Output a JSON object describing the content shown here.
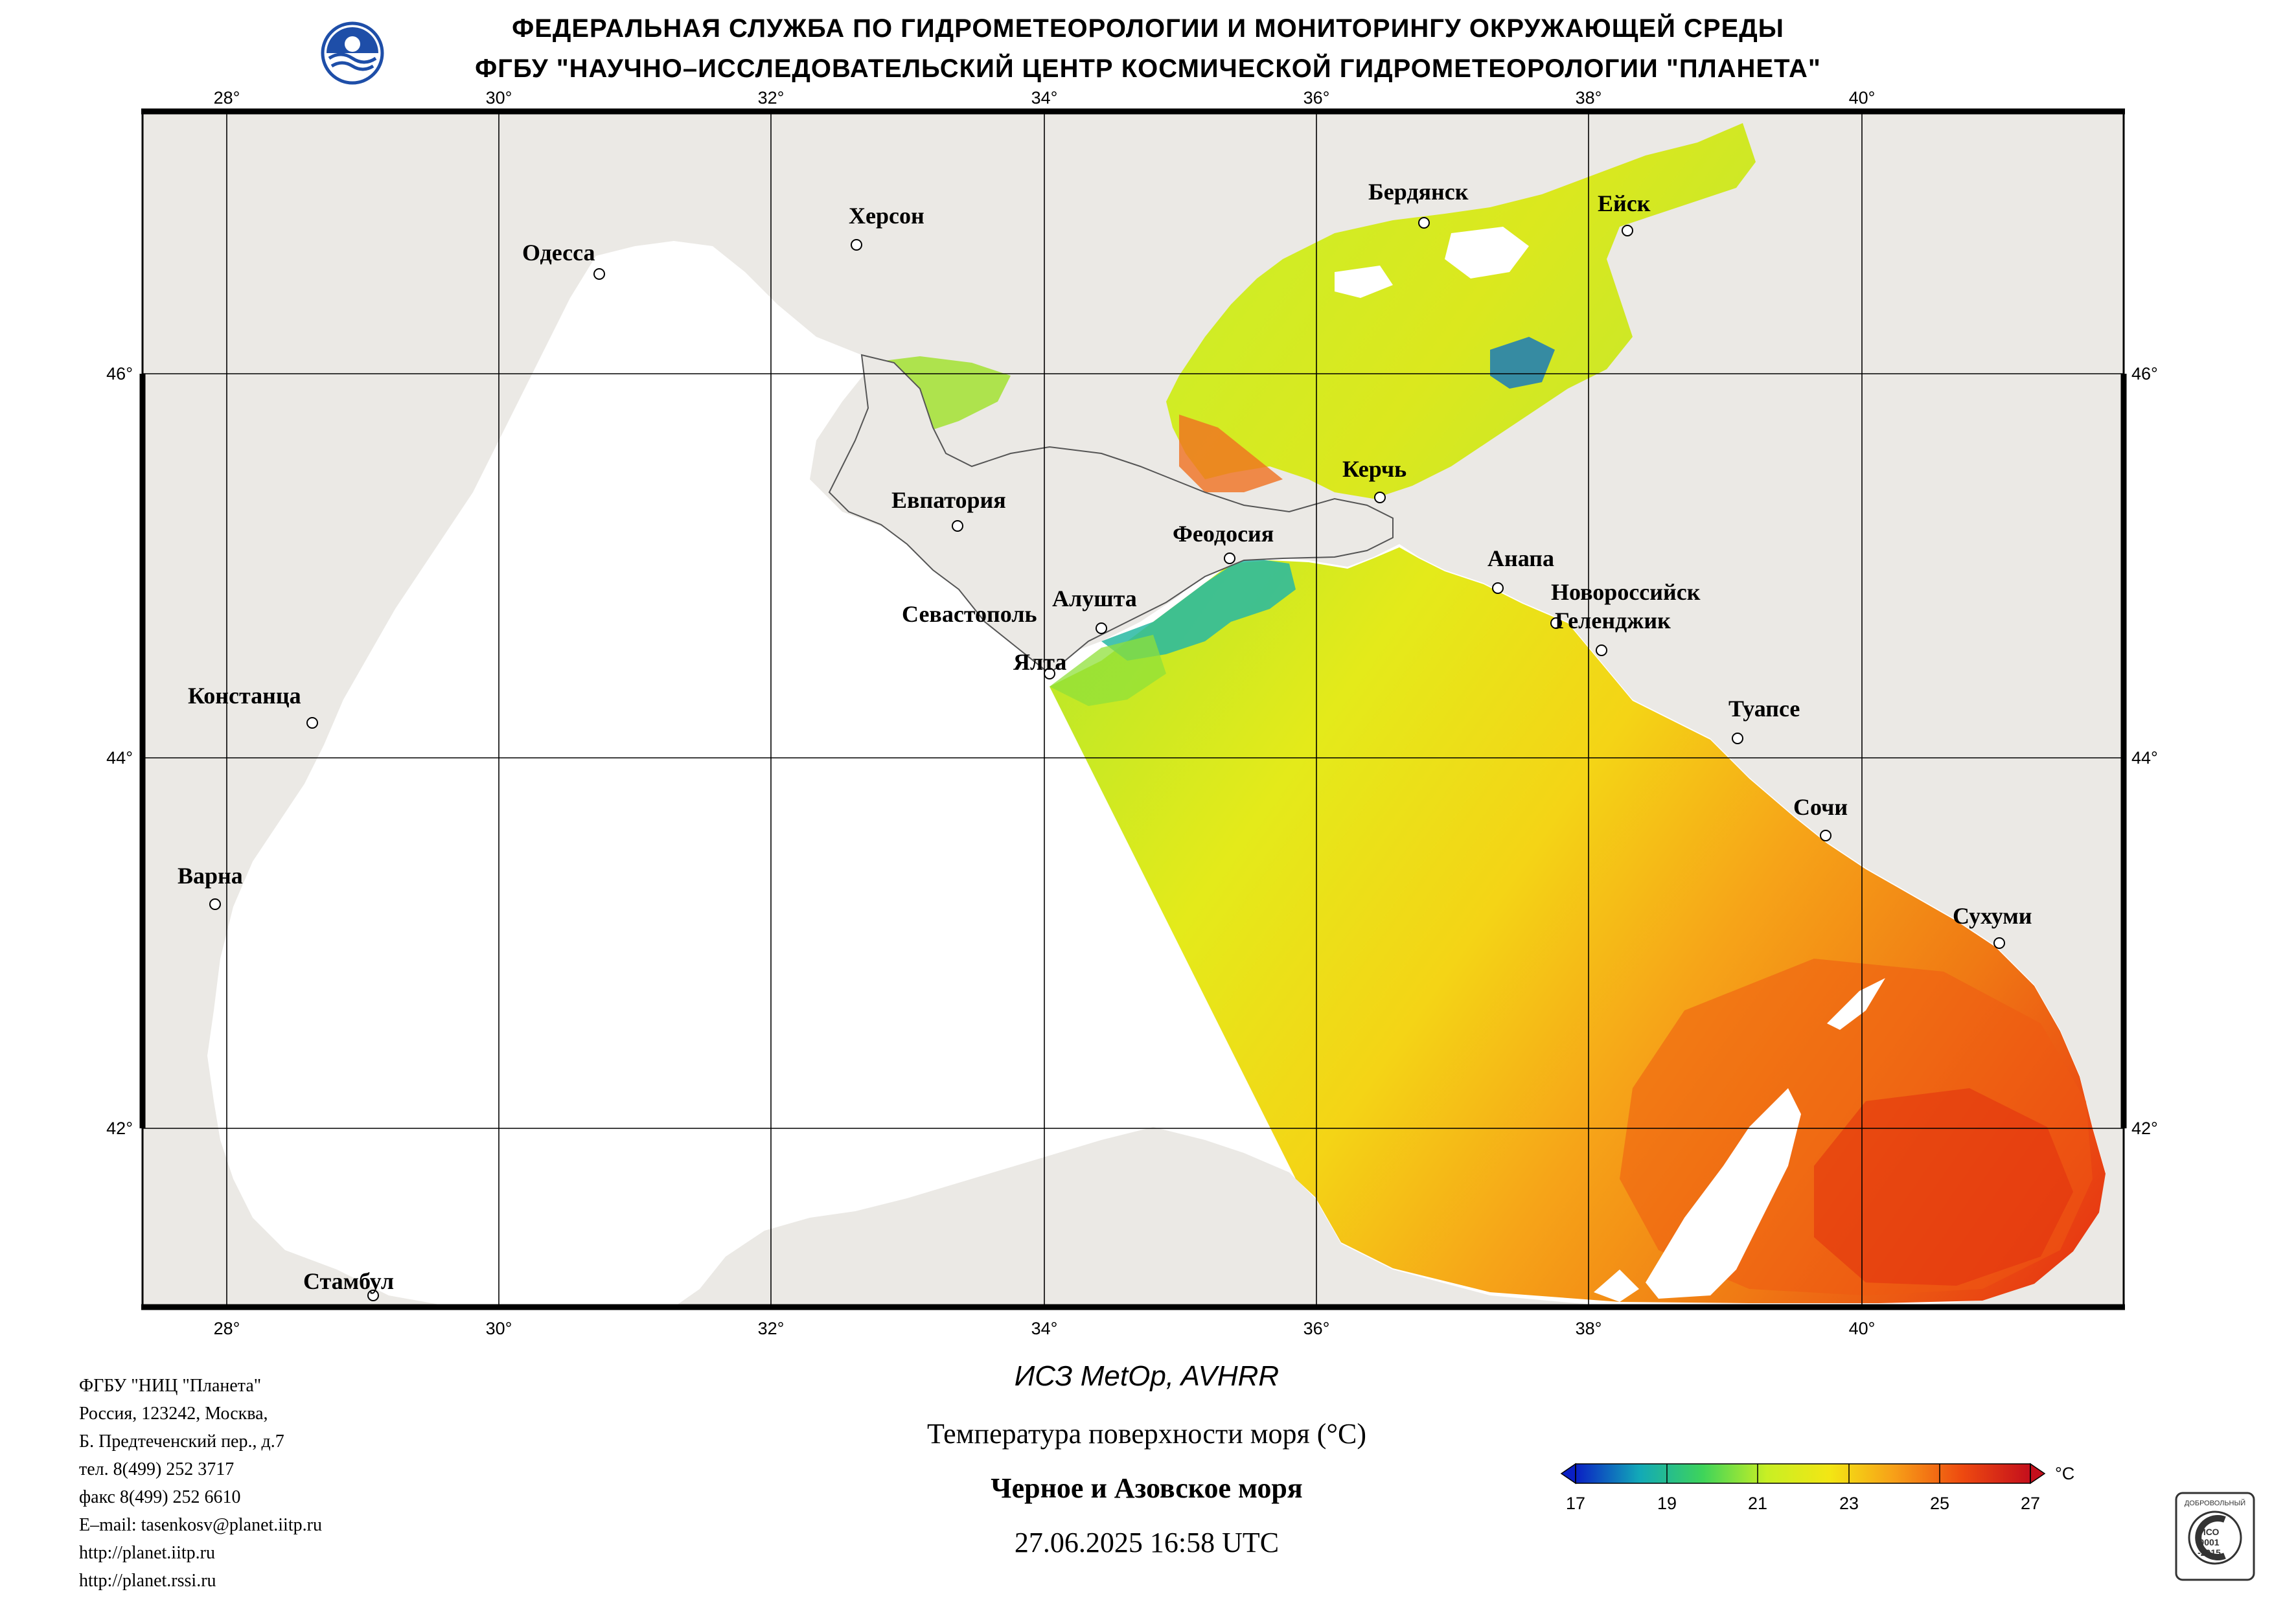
{
  "header": {
    "line1": "ФЕДЕРАЛЬНАЯ СЛУЖБА ПО ГИДРОМЕТЕОРОЛОГИИ И МОНИТОРИНГУ ОКРУЖАЮЩЕЙ СРЕДЫ",
    "line2": "ФГБУ \"НАУЧНО–ИССЛЕДОВАТЕЛЬСКИЙ ЦЕНТР КОСМИЧЕСКОЙ ГИДРОМЕТЕОРОЛОГИИ \"ПЛАНЕТА\""
  },
  "map": {
    "longitude_ticks": [
      "28°",
      "30°",
      "32°",
      "34°",
      "36°",
      "38°",
      "40°"
    ],
    "latitude_ticks": [
      "46°",
      "44°",
      "42°"
    ],
    "cities": [
      "Одесса",
      "Херсон",
      "Бердянск",
      "Ейск",
      "Евпатория",
      "Керчь",
      "Феодосия",
      "Анапа",
      "Новороссийск",
      "Геленджик",
      "Севастополь",
      "Алушта",
      "Ялта",
      "Констанца",
      "Туапсе",
      "Сочи",
      "Варна",
      "Сухуми",
      "Стамбул"
    ]
  },
  "footer": {
    "org": [
      "ФГБУ \"НИЦ \"Планета\"",
      "Россия, 123242, Москва,",
      "Б. Предтеченский пер., д.7",
      "тел. 8(499) 252 3717",
      "факс 8(499) 252 6610",
      "E–mail: tasenkosv@planet.iitp.ru",
      "http://planet.iitp.ru",
      "http://planet.rssi.ru"
    ],
    "satellite": "ИСЗ MetOp, AVHRR",
    "product": "Температура поверхности моря (°C)",
    "region": "Черное и Азовское моря",
    "datetime": "27.06.2025 16:58 UTC"
  },
  "legend": {
    "ticks": [
      "17",
      "19",
      "21",
      "23",
      "25",
      "27"
    ],
    "unit": "°C",
    "colors": [
      "#0a1fc4",
      "#12a9b8",
      "#3ed45a",
      "#c8ef24",
      "#f3e614",
      "#f7a018",
      "#ee4a10",
      "#c40f1c"
    ]
  },
  "iso_stamp": {
    "line1": "ДОБРОВОЛЬНЫЙ",
    "line2": "ИСО",
    "line3": "9001",
    "line4": "-2015"
  }
}
